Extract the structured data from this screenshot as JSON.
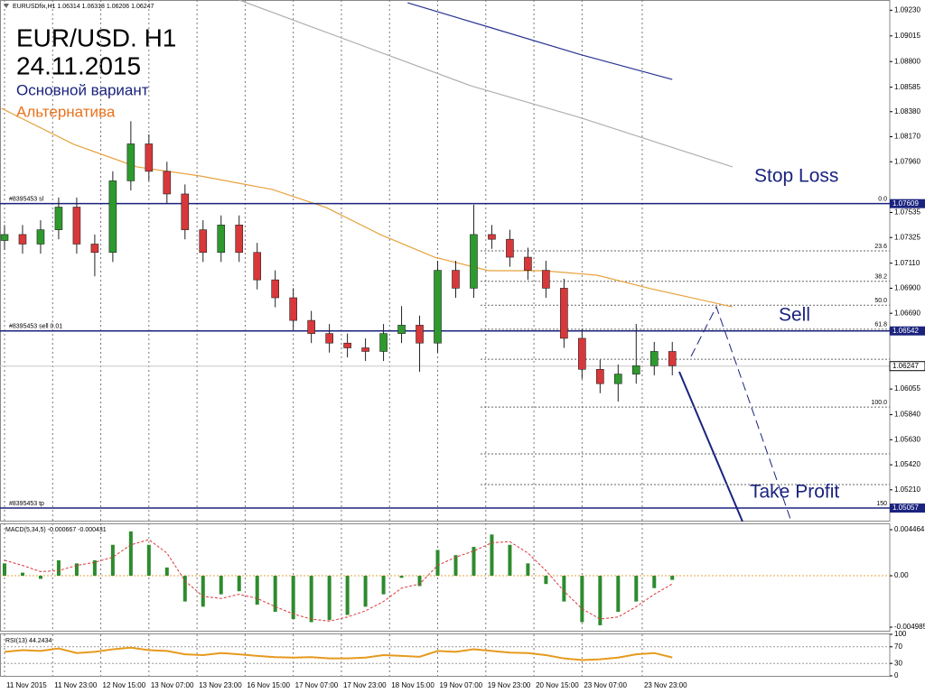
{
  "header": "EURUSDfix,H1  1.06314 1.06318 1.06206 1.06247",
  "chart_data": [
    {
      "type": "candlestick",
      "title": "EUR/USD. H1",
      "subtitle": "24.11.2015",
      "scenarios": [
        {
          "name": "Основной вариант",
          "color": "#1a237e"
        },
        {
          "name": "Альтернатива",
          "color": "#e8721c"
        }
      ],
      "annotations": [
        "Stop Loss",
        "Sell",
        "Take Profit"
      ],
      "up_color": "#2e9a2e",
      "down_color": "#d9383a",
      "x": [
        0,
        6,
        12,
        18,
        24,
        30,
        36,
        42,
        48,
        54,
        60,
        66,
        72,
        78,
        84,
        90,
        96,
        102,
        108,
        114,
        120,
        126,
        132,
        138,
        144,
        150,
        156,
        162,
        168,
        174,
        180,
        186,
        192,
        198,
        204,
        210,
        216,
        222
      ],
      "open": [
        1.073,
        1.0735,
        1.0727,
        1.0739,
        1.0758,
        1.0727,
        1.072,
        1.078,
        1.0811,
        1.0788,
        1.0769,
        1.0739,
        1.072,
        1.0743,
        1.072,
        1.0697,
        1.0682,
        1.0663,
        1.0652,
        1.0644,
        1.064,
        1.0637,
        1.0652,
        1.0659,
        1.0644,
        1.0705,
        1.069,
        1.0735,
        1.0731,
        1.0716,
        1.0705,
        1.069,
        1.0648,
        1.0622,
        1.061,
        1.0618,
        1.0625,
        1.0637
      ],
      "high": [
        1.0743,
        1.0743,
        1.0747,
        1.0766,
        1.0766,
        1.0735,
        1.0788,
        1.083,
        1.0819,
        1.0796,
        1.0777,
        1.0747,
        1.0751,
        1.0751,
        1.0728,
        1.0705,
        1.069,
        1.0671,
        1.066,
        1.0652,
        1.0648,
        1.066,
        1.0675,
        1.0667,
        1.0713,
        1.0713,
        1.076,
        1.0743,
        1.0739,
        1.0724,
        1.0713,
        1.0698,
        1.0656,
        1.063,
        1.0626,
        1.066,
        1.0645,
        1.0645
      ],
      "low": [
        1.0722,
        1.0719,
        1.0719,
        1.0731,
        1.0719,
        1.07,
        1.0712,
        1.0772,
        1.078,
        1.0761,
        1.0731,
        1.0712,
        1.0712,
        1.0712,
        1.0689,
        1.0674,
        1.0655,
        1.0644,
        1.0636,
        1.0632,
        1.0629,
        1.0629,
        1.0644,
        1.062,
        1.0636,
        1.0682,
        1.0682,
        1.0723,
        1.0708,
        1.0697,
        1.0682,
        1.064,
        1.0614,
        1.0602,
        1.0595,
        1.061,
        1.0617,
        1.0617
      ],
      "close": [
        1.0735,
        1.0727,
        1.0739,
        1.0758,
        1.0727,
        1.072,
        1.078,
        1.0811,
        1.0788,
        1.0769,
        1.0739,
        1.072,
        1.0743,
        1.072,
        1.0697,
        1.0682,
        1.0663,
        1.0652,
        1.0644,
        1.064,
        1.0637,
        1.0652,
        1.0659,
        1.0644,
        1.0705,
        1.069,
        1.0735,
        1.0731,
        1.0716,
        1.0705,
        1.069,
        1.0648,
        1.0622,
        1.061,
        1.0618,
        1.0625,
        1.0637,
        1.0625
      ],
      "lines": [
        {
          "color": "#e8a23c",
          "x": [
            -1,
            23,
            44,
            65,
            89,
            107,
            125,
            143,
            161,
            179,
            197,
            215,
            242
          ],
          "values": [
            1.08408,
            1.08106,
            1.07917,
            1.07841,
            1.07728,
            1.07576,
            1.07349,
            1.0716,
            1.07047,
            1.07047,
            1.07009,
            1.06895,
            1.06744
          ]
        },
        {
          "color": "#b0b0b0",
          "x": [
            78,
            155,
            191,
            242
          ],
          "values": [
            1.09316,
            1.08597,
            1.08333,
            1.07917
          ]
        },
        {
          "color": "#283593",
          "x": [
            134,
            161,
            191,
            222
          ],
          "values": [
            1.09293,
            1.09089,
            1.08862,
            1.0865
          ]
        }
      ],
      "orders": [
        {
          "label": "#8395453 sl",
          "value": 1.07609
        },
        {
          "label": "#8395453 sell 0.01",
          "value": 1.06542
        },
        {
          "label": "#8395453 tp",
          "value": 1.05057
        }
      ],
      "last_price": 1.06247,
      "fib_levels": [
        {
          "value": 1.07609,
          "label": "0.0"
        },
        {
          "value": 1.07213,
          "label": "23.6"
        },
        {
          "value": 1.06958,
          "label": "38.2"
        },
        {
          "value": 1.06757,
          "label": "50.0"
        },
        {
          "value": 1.06556,
          "label": "61.8"
        },
        {
          "value": 1.06305,
          "label": null
        },
        {
          "value": 1.05904,
          "label": "100.0"
        },
        {
          "value": 1.05511,
          "label": null
        },
        {
          "value": 1.05254,
          "label": null
        },
        {
          "value": 1.05057,
          "label": "150"
        }
      ],
      "xlim": [
        -1.5,
        294.3
      ],
      "xticks": [
        {
          "value": 0,
          "label": "11 Nov 2015"
        },
        {
          "value": 16,
          "label": "11 Nov 23:00"
        },
        {
          "value": 32,
          "label": "12 Nov 15:00"
        },
        {
          "value": 48,
          "label": "13 Nov 07:00"
        },
        {
          "value": 64,
          "label": "13 Nov 23:00"
        },
        {
          "value": 80,
          "label": "16 Nov 15:00"
        },
        {
          "value": 96,
          "label": "17 Nov 07:00"
        },
        {
          "value": 112,
          "label": "17 Nov 23:00"
        },
        {
          "value": 128,
          "label": "18 Nov 15:00"
        },
        {
          "value": 144,
          "label": "19 Nov 07:00"
        },
        {
          "value": 160,
          "label": "19 Nov 23:00"
        },
        {
          "value": 176,
          "label": "20 Nov 15:00"
        },
        {
          "value": 192,
          "label": "23 Nov 07:00"
        },
        {
          "value": 212,
          "label": "23 Nov 23:00"
        }
      ],
      "grid": "x",
      "ylim": [
        1.04944,
        1.09316
      ],
      "yticks": [
        {
          "value": 1.0923,
          "label": "1.09230"
        },
        1.09015,
        {
          "value": 1.088,
          "label": "1.08800"
        },
        1.08585,
        {
          "value": 1.0838,
          "label": "1.08380"
        },
        {
          "value": 1.0817,
          "label": "1.08170"
        },
        {
          "value": 1.0796,
          "label": "1.07960"
        },
        1.07535,
        1.07325,
        {
          "value": 1.0711,
          "label": "1.07110"
        },
        {
          "value": 1.069,
          "label": "1.06900"
        },
        {
          "value": 1.0669,
          "label": "1.06690"
        },
        1.06055,
        {
          "value": 1.0584,
          "label": "1.05840"
        },
        {
          "value": 1.0563,
          "label": "1.05630"
        },
        {
          "value": 1.0542,
          "label": "1.05420"
        },
        {
          "value": 1.0521,
          "label": "1.05210"
        }
      ]
    },
    {
      "type": "bar",
      "title": "MACD(5,34,5) -0.000667 -0.000431",
      "color": "#2e8b2e",
      "values": [
        0.0012,
        0.0003,
        -0.0003,
        0.0015,
        0.0012,
        0.0015,
        0.003,
        0.0043,
        0.003,
        0.0008,
        -0.0025,
        -0.003,
        -0.0018,
        -0.0015,
        -0.0028,
        -0.0035,
        -0.0042,
        -0.0045,
        -0.0043,
        -0.0038,
        -0.003,
        -0.0018,
        -0.0002,
        -0.001,
        0.0025,
        0.002,
        0.0028,
        0.004,
        0.003,
        0.0012,
        -0.0008,
        -0.0025,
        -0.0045,
        -0.0048,
        -0.0035,
        -0.0025,
        -0.0012,
        -0.0004
      ],
      "signal": {
        "color": "#d9383a",
        "values": [
          0.0015,
          0.001,
          0.0004,
          0.0005,
          0.001,
          0.0013,
          0.0018,
          0.003,
          0.0035,
          0.0022,
          -0.0005,
          -0.002,
          -0.0022,
          -0.0018,
          -0.0022,
          -0.003,
          -0.0037,
          -0.0042,
          -0.0044,
          -0.004,
          -0.0034,
          -0.0025,
          -0.0012,
          -0.0008,
          0.001,
          0.0018,
          0.0024,
          0.0032,
          0.0033,
          0.0022,
          0.0005,
          -0.0015,
          -0.0032,
          -0.0042,
          -0.004,
          -0.003,
          -0.0018,
          -0.0008
        ]
      },
      "ylim": [
        -0.00542,
        0.00508
      ],
      "yticks": [
        0.004464,
        {
          "value": 0,
          "label": "0.00"
        },
        -0.004985
      ]
    },
    {
      "type": "line",
      "title": "RSI(13) 44.2434",
      "color": "#e69a1e",
      "values": [
        58,
        62,
        60,
        66,
        55,
        58,
        64,
        68,
        62,
        60,
        52,
        50,
        55,
        52,
        48,
        45,
        44,
        45,
        42,
        42,
        44,
        50,
        48,
        46,
        60,
        58,
        64,
        60,
        56,
        55,
        50,
        42,
        38,
        40,
        44,
        52,
        55,
        44.2434
      ],
      "ylim": [
        0,
        100
      ],
      "yticks": [
        0,
        30,
        70,
        100
      ]
    }
  ]
}
